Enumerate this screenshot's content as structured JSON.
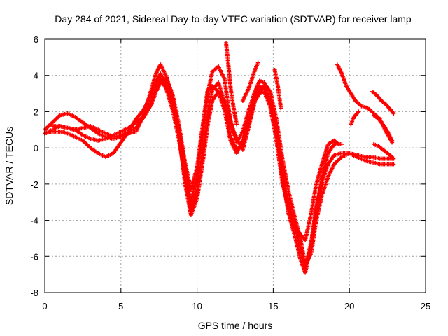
{
  "chart_data": {
    "type": "scatter",
    "title": "Day 284 of 2021, Sidereal Day-to-day VTEC variation (SDTVAR) for receiver lamp",
    "xlabel": "GPS time / hours",
    "ylabel": "SDTVAR / TECUs",
    "xlim": [
      0,
      25
    ],
    "ylim": [
      -8,
      6
    ],
    "xticks": [
      "0",
      "5",
      "10",
      "15",
      "20",
      "25"
    ],
    "yticks": [
      "-8",
      "-6",
      "-4",
      "-2",
      "0",
      "2",
      "4",
      "6"
    ],
    "grid": true,
    "marker": "plus",
    "color": "#ff0000",
    "series": [
      {
        "x": [
          0,
          0.5,
          1,
          1.5,
          2,
          2.5,
          3,
          3.5,
          4,
          4.5,
          5,
          5.5,
          6,
          6.5,
          7,
          7.3,
          7.6,
          8,
          8.4,
          8.8,
          9.2,
          9.6,
          10,
          10.4,
          10.7,
          11,
          11.4,
          11.8,
          12.2,
          12.6,
          13,
          13.4,
          13.8,
          14.1,
          14.4,
          14.8,
          15.2,
          15.6,
          16,
          16.4,
          16.8,
          17.1,
          17.5,
          17.8,
          18.2,
          18.6,
          19,
          19.5,
          20,
          20.5,
          21,
          21.5,
          22,
          22.5,
          22.9
        ],
        "y": [
          0.8,
          1,
          1.2,
          1.1,
          1,
          1.1,
          1.2,
          1,
          0.8,
          0.6,
          0.7,
          0.9,
          1.1,
          1.7,
          2.6,
          3.3,
          3.8,
          3.2,
          2.1,
          0.5,
          -1.5,
          -3.4,
          -2.3,
          0.1,
          2,
          3.2,
          3.6,
          2.5,
          0.6,
          -0.1,
          0.2,
          1.6,
          2.9,
          3.4,
          3.3,
          2.6,
          0.9,
          -1.3,
          -3,
          -4.4,
          -5.6,
          -6.6,
          -5.2,
          -3.4,
          -1.9,
          -0.9,
          -0.4,
          -0.3,
          -0.3,
          -0.4,
          -0.5,
          -0.5,
          -0.6,
          -0.6,
          -0.6
        ]
      },
      {
        "x": [
          0,
          0.5,
          1,
          1.5,
          2,
          2.5,
          3,
          3.5,
          4,
          4.5,
          5,
          5.5,
          6,
          6.5,
          7,
          7.3,
          7.6,
          8,
          8.4,
          8.8,
          9.2,
          9.6,
          10,
          10.4,
          10.7,
          11,
          11.4,
          11.8,
          12.2,
          12.6,
          13,
          13.4,
          13.8,
          14.1,
          14.4,
          14.8,
          15.2,
          15.6,
          16,
          16.4,
          16.8,
          17.1,
          17.5,
          17.8,
          18.2,
          18.6,
          19,
          19.5,
          20,
          20.5,
          21,
          21.5,
          22,
          22.5,
          22.9
        ],
        "y": [
          1,
          1.4,
          1.8,
          1.9,
          1.7,
          1.4,
          1.1,
          0.8,
          0.6,
          0.5,
          0.6,
          0.8,
          0.9,
          1.9,
          3.2,
          4.1,
          4.6,
          3.9,
          2.7,
          1,
          -1,
          -3,
          -1.5,
          1,
          3,
          4.2,
          4.5,
          3.8,
          1.4,
          0.3,
          0.9,
          2.1,
          3.1,
          3.7,
          3.6,
          3.1,
          1.6,
          -0.6,
          -2.4,
          -3.8,
          -5.1,
          -6.5,
          -5.8,
          -4.1,
          -2.6,
          -1.6,
          -0.9,
          -0.5,
          -0.3,
          -0.5,
          -0.7,
          -0.8,
          -0.9,
          -0.9,
          -0.9
        ]
      },
      {
        "x": [
          0,
          0.5,
          1,
          1.5,
          2,
          2.5,
          3,
          3.5,
          4,
          4.5,
          5,
          5.5,
          6,
          6.5,
          7,
          7.3,
          7.6,
          8,
          8.4,
          8.8,
          9.2,
          9.6,
          10,
          10.4,
          10.7,
          11,
          11.4,
          11.8,
          12.2,
          12.6,
          13,
          13.4,
          13.8,
          14.1,
          14.4,
          14.8,
          15.2,
          15.6,
          16,
          16.4,
          16.8,
          17.1,
          17.5,
          17.8,
          18.2,
          18.6,
          19,
          19.5
        ],
        "y": [
          0.8,
          0.9,
          0.9,
          0.8,
          0.6,
          0.4,
          0,
          -0.3,
          -0.5,
          -0.3,
          0.3,
          0.9,
          1.6,
          2.1,
          3,
          3.6,
          4.1,
          3.4,
          2.4,
          0.9,
          -1.9,
          -3.7,
          -2.8,
          -0.6,
          1.3,
          2.6,
          3.1,
          2.1,
          0.4,
          -0.3,
          0.4,
          1.4,
          2.7,
          3.1,
          3.4,
          2.7,
          1.1,
          -1.6,
          -3.6,
          -4.8,
          -6.2,
          -6.9,
          -5.3,
          -3.6,
          -1.6,
          -0.3,
          0.2,
          0.2
        ]
      },
      {
        "x": [
          0.5,
          1,
          1.5,
          2,
          2.5,
          3,
          3.5,
          4,
          4.5,
          5,
          5.5,
          6,
          6.5,
          7,
          7.3,
          7.6,
          8,
          8.4,
          8.8,
          9.2,
          9.6,
          10,
          10.4,
          10.7,
          11,
          11.4,
          11.8,
          12,
          12.4,
          12.8,
          13,
          13.4,
          13.8,
          14.1,
          14.4,
          14.8,
          15.2,
          15.6,
          16,
          16.4,
          16.8,
          17.1,
          17.5,
          17.8,
          18.2,
          18.6,
          19,
          19.3
        ],
        "y": [
          1.2,
          1.2,
          1.1,
          1,
          0.7,
          0.5,
          0.4,
          0.5,
          0.7,
          0.9,
          1.1,
          1.4,
          1.7,
          2.4,
          3.1,
          3.6,
          3.8,
          2.9,
          1.3,
          -0.8,
          -2.3,
          -1.1,
          1.4,
          3.2,
          3.4,
          3.1,
          2.6,
          2.1,
          0.9,
          0.2,
          -0.1,
          1.2,
          2.6,
          3,
          3.1,
          2.3,
          0.5,
          -1.9,
          -3.3,
          -4.3,
          -4.8,
          -5.1,
          -3.6,
          -2.1,
          -0.9,
          0.2,
          0.4,
          0.2
        ]
      },
      {
        "x": [
          11.9,
          12,
          12.1,
          12.2,
          12.4,
          12.6
        ],
        "y": [
          5.8,
          5,
          4.2,
          3.3,
          2.2,
          1.3
        ]
      },
      {
        "x": [
          13,
          13.4,
          13.8,
          14
        ],
        "y": [
          2.6,
          3.3,
          4.3,
          4.7
        ]
      },
      {
        "x": [
          15.1,
          15.3,
          15.5
        ],
        "y": [
          4.3,
          3.4,
          2.2
        ]
      },
      {
        "x": [
          19.2,
          19.5,
          19.8,
          20.1,
          20.4,
          20.8,
          21.2,
          21.6,
          22,
          22.4,
          22.8
        ],
        "y": [
          4.6,
          4.1,
          3.4,
          3,
          2.6,
          2.3,
          2.2,
          1.9,
          1.6,
          0.9,
          0.3
        ]
      },
      {
        "x": [
          21.5,
          21.8,
          22.1,
          22.4,
          22.7,
          22.9
        ],
        "y": [
          3.1,
          2.9,
          2.6,
          2.4,
          2.1,
          1.9
        ]
      },
      {
        "x": [
          20.1,
          20.3,
          20.6
        ],
        "y": [
          1.3,
          1.7,
          2
        ]
      },
      {
        "x": [
          21.6,
          21.9,
          22.2,
          22.5,
          22.8
        ],
        "y": [
          1.8,
          1.6,
          1.3,
          0.9,
          0.4
        ]
      },
      {
        "x": [
          21.6,
          21.9,
          22.2,
          22.5,
          22.8
        ],
        "y": [
          0.2,
          0.1,
          -0.1,
          -0.3,
          -0.5
        ]
      }
    ]
  }
}
